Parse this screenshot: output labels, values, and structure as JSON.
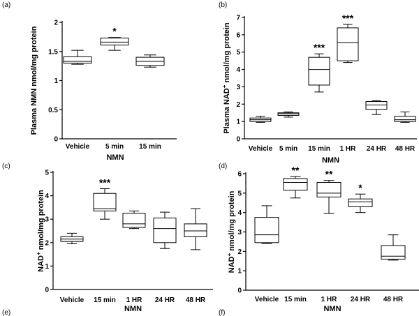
{
  "chart_data": [
    {
      "id": "a",
      "panel_label": "(a)",
      "type": "box",
      "ylabel": "Plasma NMN nmol/mg protein",
      "ylabel_sup": "",
      "ylabel_rest": "",
      "xlabel": "NMN",
      "ylim": [
        0,
        2
      ],
      "yticks": [
        0,
        0.5,
        1,
        1.5,
        2
      ],
      "ytick_labels": [
        "0",
        "0.5",
        "1",
        "1.5",
        "2"
      ],
      "categories": [
        "Vehicle",
        "5 min",
        "15 min"
      ],
      "boxes": [
        {
          "min": 1.28,
          "q1": 1.3,
          "median": 1.33,
          "q3": 1.41,
          "max": 1.52,
          "sig": ""
        },
        {
          "min": 1.52,
          "q1": 1.61,
          "median": 1.66,
          "q3": 1.73,
          "max": 1.74,
          "sig": "*"
        },
        {
          "min": 1.23,
          "q1": 1.26,
          "median": 1.33,
          "q3": 1.4,
          "max": 1.44,
          "sig": ""
        }
      ]
    },
    {
      "id": "b",
      "panel_label": "(b)",
      "type": "box",
      "ylabel": "Plasma NAD",
      "ylabel_sup": "+",
      "ylabel_rest": " nmol/mg protein",
      "xlabel": "NMN",
      "ylim": [
        0,
        7
      ],
      "yticks": [
        0,
        1,
        2,
        3,
        4,
        5,
        6,
        7
      ],
      "ytick_labels": [
        "0",
        "1",
        "2",
        "3",
        "4",
        "5",
        "6",
        "7"
      ],
      "categories": [
        "Vehicle",
        "5 min",
        "15 min",
        "1 HR",
        "24 HR",
        "48 HR"
      ],
      "boxes": [
        {
          "min": 0.95,
          "q1": 1.0,
          "median": 1.1,
          "q3": 1.2,
          "max": 1.3,
          "sig": ""
        },
        {
          "min": 1.25,
          "q1": 1.35,
          "median": 1.45,
          "q3": 1.5,
          "max": 1.55,
          "sig": ""
        },
        {
          "min": 2.7,
          "q1": 3.1,
          "median": 4.0,
          "q3": 4.7,
          "max": 4.9,
          "sig": "***"
        },
        {
          "min": 4.4,
          "q1": 4.5,
          "median": 5.55,
          "q3": 6.4,
          "max": 6.6,
          "sig": "***"
        },
        {
          "min": 1.4,
          "q1": 1.7,
          "median": 1.95,
          "q3": 2.15,
          "max": 2.2,
          "sig": ""
        },
        {
          "min": 0.95,
          "q1": 1.0,
          "median": 1.1,
          "q3": 1.3,
          "max": 1.55,
          "sig": ""
        }
      ]
    },
    {
      "id": "c",
      "panel_label": "(c)",
      "type": "box",
      "ylabel": "NAD",
      "ylabel_sup": "+",
      "ylabel_rest": " nmol/mg protein",
      "xlabel": "NMN",
      "ylim": [
        0,
        5
      ],
      "yticks": [
        0,
        1,
        2,
        3,
        4,
        5
      ],
      "ytick_labels": [
        "0",
        "1",
        "2",
        "3",
        "4",
        "5"
      ],
      "categories": [
        "Vehicle",
        "15 min",
        "1 HR",
        "24 HR",
        "48 HR"
      ],
      "boxes": [
        {
          "min": 1.95,
          "q1": 2.05,
          "median": 2.15,
          "q3": 2.25,
          "max": 2.4,
          "sig": ""
        },
        {
          "min": 3.0,
          "q1": 3.35,
          "median": 3.45,
          "q3": 4.1,
          "max": 4.3,
          "sig": "***"
        },
        {
          "min": 2.6,
          "q1": 2.65,
          "median": 2.8,
          "q3": 3.25,
          "max": 3.35,
          "sig": ""
        },
        {
          "min": 1.75,
          "q1": 2.0,
          "median": 2.6,
          "q3": 3.05,
          "max": 3.3,
          "sig": ""
        },
        {
          "min": 1.7,
          "q1": 2.25,
          "median": 2.5,
          "q3": 2.8,
          "max": 3.45,
          "sig": ""
        }
      ]
    },
    {
      "id": "d",
      "panel_label": "(d)",
      "type": "box",
      "ylabel": "NAD",
      "ylabel_sup": "+",
      "ylabel_rest": " nmol/mg protein",
      "xlabel": "NMN",
      "ylim": [
        0,
        6
      ],
      "yticks": [
        0,
        1,
        2,
        3,
        4,
        5,
        6
      ],
      "ytick_labels": [
        "0",
        "1",
        "2",
        "3",
        "4",
        "5",
        "6"
      ],
      "categories": [
        "Vehicle",
        "15 min",
        "1 HR",
        "24 HR",
        "48 HR"
      ],
      "boxes": [
        {
          "min": 2.4,
          "q1": 2.45,
          "median": 2.85,
          "q3": 3.75,
          "max": 4.35,
          "sig": ""
        },
        {
          "min": 4.75,
          "q1": 5.15,
          "median": 5.55,
          "q3": 5.75,
          "max": 5.85,
          "sig": "**"
        },
        {
          "min": 3.95,
          "q1": 4.8,
          "median": 5.0,
          "q3": 5.55,
          "max": 5.65,
          "sig": "**"
        },
        {
          "min": 4.0,
          "q1": 4.3,
          "median": 4.55,
          "q3": 4.7,
          "max": 4.95,
          "sig": "*"
        },
        {
          "min": 1.55,
          "q1": 1.6,
          "median": 1.75,
          "q3": 2.3,
          "max": 2.85,
          "sig": ""
        }
      ]
    }
  ],
  "bottom_labels": [
    "(e)",
    "(f)"
  ]
}
